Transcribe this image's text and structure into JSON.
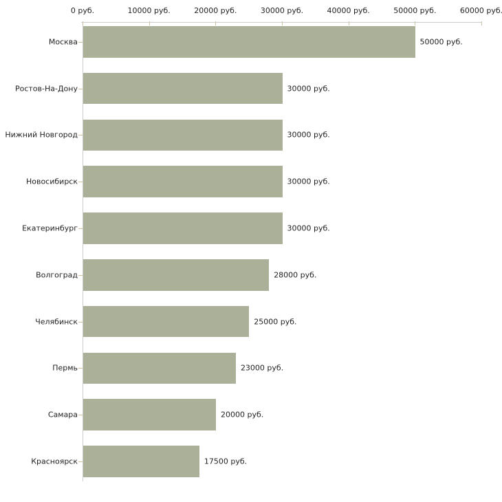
{
  "chart_data": {
    "type": "bar",
    "orientation": "horizontal",
    "categories": [
      "Москва",
      "Ростов-На-Дону",
      "Нижний Новгород",
      "Новосибирск",
      "Екатеринбург",
      "Волгоград",
      "Челябинск",
      "Пермь",
      "Самара",
      "Красноярск"
    ],
    "values": [
      50000,
      30000,
      30000,
      30000,
      30000,
      28000,
      25000,
      23000,
      20000,
      17500
    ],
    "value_labels": [
      "50000 руб.",
      "30000 руб.",
      "30000 руб.",
      "30000 руб.",
      "30000 руб.",
      "28000 руб.",
      "25000 руб.",
      "23000 руб.",
      "20000 руб.",
      "17500 руб."
    ],
    "x_axis": {
      "position": "top",
      "tick_values": [
        0,
        10000,
        20000,
        30000,
        40000,
        50000,
        60000
      ],
      "tick_labels": [
        "0 руб.",
        "10000 руб.",
        "20000 руб.",
        "30000 руб.",
        "40000 руб.",
        "50000 руб.",
        "60000 руб."
      ]
    },
    "xlim": [
      0,
      60000
    ],
    "title": "",
    "xlabel": "",
    "ylabel": "",
    "grid": false,
    "legend": false,
    "colors": {
      "bar": "#abb199",
      "axis_line": "#cccccc",
      "tick": "#cbc2a0",
      "text": "#222222",
      "background": "#ffffff"
    }
  }
}
